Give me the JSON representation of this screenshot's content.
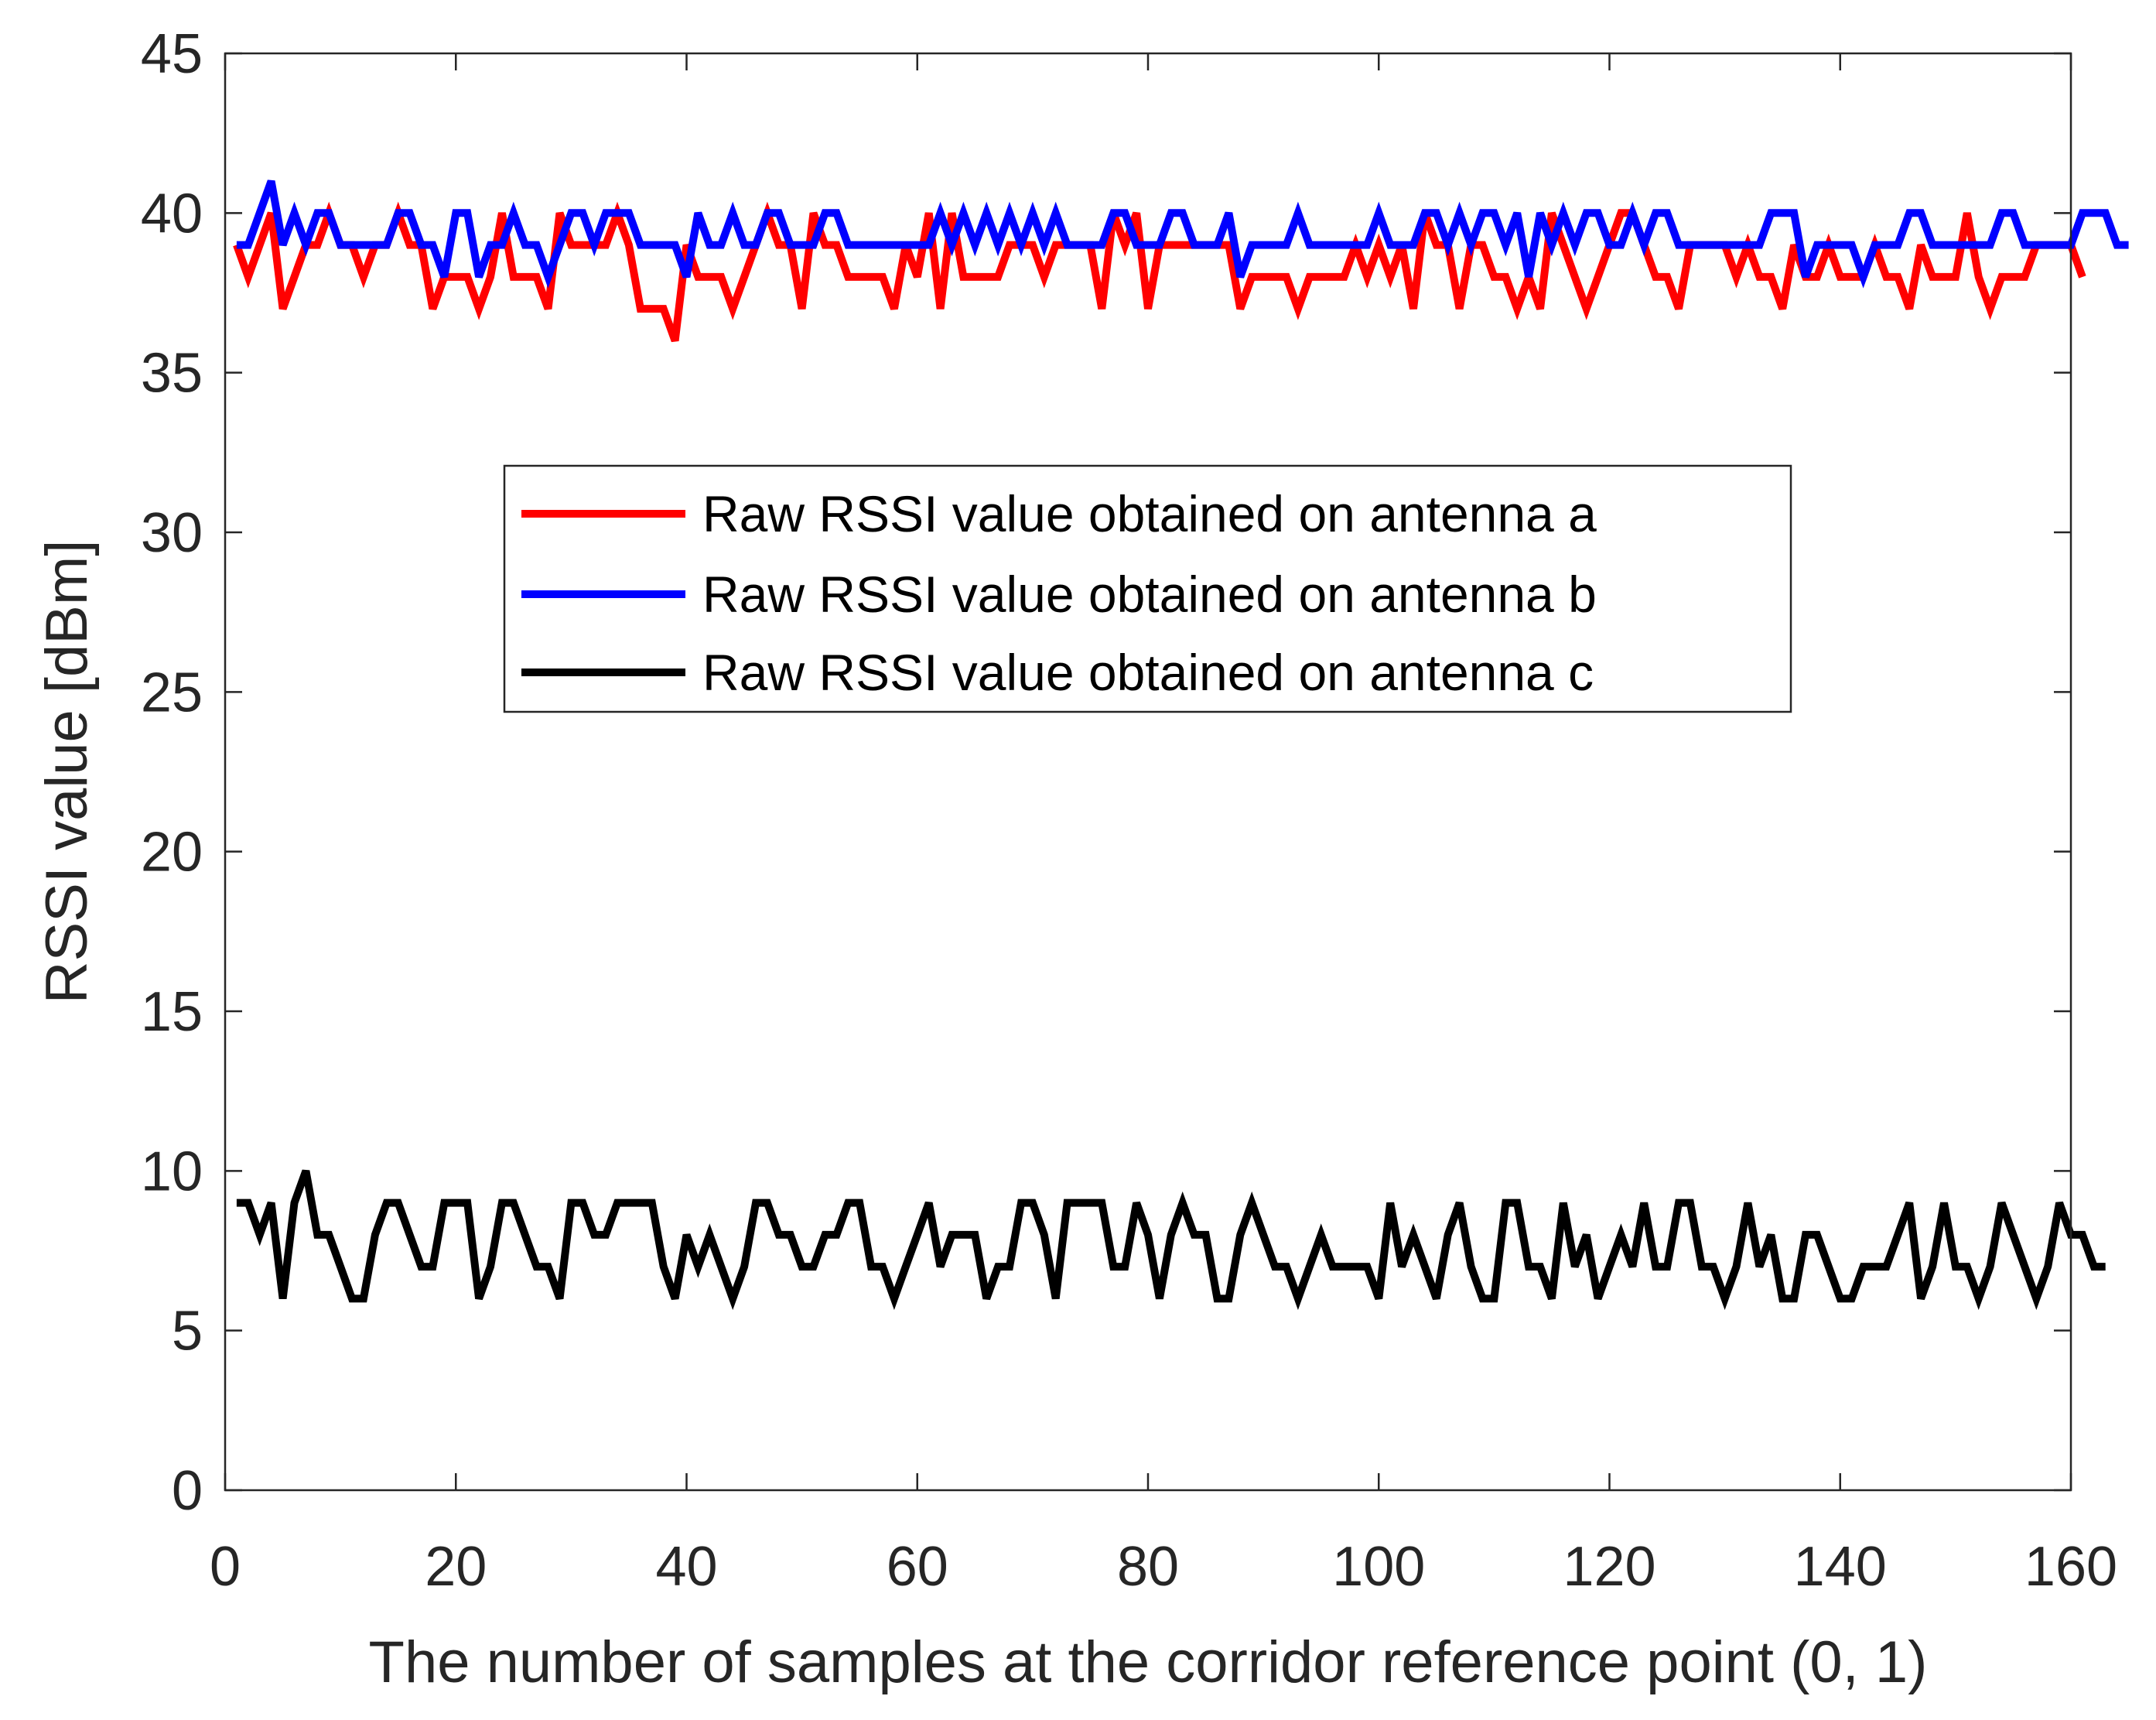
{
  "chart_data": {
    "type": "line",
    "title": "",
    "xlabel": "The number of samples at the corridor reference point (0, 1)",
    "ylabel": "RSSI value [dBm]",
    "xlim": [
      0,
      160
    ],
    "ylim": [
      0,
      45
    ],
    "xticks": [
      0,
      20,
      40,
      60,
      80,
      100,
      120,
      140,
      160
    ],
    "yticks": [
      0,
      5,
      10,
      15,
      20,
      25,
      30,
      35,
      40,
      45
    ],
    "grid": false,
    "legend_position": "center",
    "x_start": 1,
    "series": [
      {
        "name": "Raw RSSI value obtained on antenna a",
        "color": "#ff0000",
        "values": [
          39,
          38,
          39,
          40,
          37,
          38,
          39,
          39,
          40,
          39,
          39,
          38,
          39,
          39,
          40,
          39,
          39,
          37,
          38,
          38,
          38,
          37,
          38,
          40,
          38,
          38,
          38,
          37,
          40,
          39,
          39,
          39,
          39,
          40,
          39,
          37,
          37,
          37,
          36,
          39,
          38,
          38,
          38,
          37,
          38,
          39,
          40,
          39,
          39,
          37,
          40,
          39,
          39,
          38,
          38,
          38,
          38,
          37,
          39,
          38,
          40,
          37,
          40,
          38,
          38,
          38,
          38,
          39,
          39,
          39,
          38,
          39,
          39,
          39,
          39,
          37,
          40,
          39,
          40,
          37,
          39,
          39,
          39,
          39,
          39,
          39,
          39,
          37,
          38,
          38,
          38,
          38,
          37,
          38,
          38,
          38,
          38,
          39,
          38,
          39,
          38,
          39,
          37,
          40,
          39,
          39,
          37,
          39,
          39,
          38,
          38,
          37,
          38,
          37,
          40,
          39,
          38,
          37,
          38,
          39,
          40,
          40,
          39,
          38,
          38,
          37,
          39,
          39,
          39,
          39,
          38,
          39,
          38,
          38,
          37,
          39,
          38,
          38,
          39,
          38,
          38,
          38,
          39,
          38,
          38,
          37,
          39,
          38,
          38,
          38,
          40,
          38,
          37,
          38,
          38,
          38,
          39,
          39,
          39,
          39,
          38
        ]
      },
      {
        "name": "Raw RSSI value obtained on antenna b",
        "color": "#0000ff",
        "values": [
          39,
          39,
          40,
          41,
          39,
          40,
          39,
          40,
          40,
          39,
          39,
          39,
          39,
          39,
          40,
          40,
          39,
          39,
          38,
          40,
          40,
          38,
          39,
          39,
          40,
          39,
          39,
          38,
          39,
          40,
          40,
          39,
          40,
          40,
          40,
          39,
          39,
          39,
          39,
          38,
          40,
          39,
          39,
          40,
          39,
          39,
          40,
          40,
          39,
          39,
          39,
          40,
          40,
          39,
          39,
          39,
          39,
          39,
          39,
          39,
          39,
          40,
          39,
          40,
          39,
          40,
          39,
          40,
          39,
          40,
          39,
          40,
          39,
          39,
          39,
          39,
          40,
          40,
          39,
          39,
          39,
          40,
          40,
          39,
          39,
          39,
          40,
          38,
          39,
          39,
          39,
          39,
          40,
          39,
          39,
          39,
          39,
          39,
          39,
          40,
          39,
          39,
          39,
          40,
          40,
          39,
          40,
          39,
          40,
          40,
          39,
          40,
          38,
          40,
          39,
          40,
          39,
          40,
          40,
          39,
          39,
          40,
          39,
          40,
          40,
          39,
          39,
          39,
          39,
          39,
          39,
          39,
          39,
          40,
          40,
          40,
          38,
          39,
          39,
          39,
          39,
          38,
          39,
          39,
          39,
          40,
          40,
          39,
          39,
          39,
          39,
          39,
          39,
          40,
          40,
          39,
          39,
          39,
          39,
          39,
          40,
          40,
          40,
          39,
          39
        ]
      },
      {
        "name": "Raw RSSI value obtained on antenna c",
        "color": "#000000",
        "values": [
          9,
          9,
          8,
          9,
          6,
          9,
          10,
          8,
          8,
          7,
          6,
          6,
          8,
          9,
          9,
          8,
          7,
          7,
          9,
          9,
          9,
          6,
          7,
          9,
          9,
          8,
          7,
          7,
          6,
          9,
          9,
          8,
          8,
          9,
          9,
          9,
          9,
          7,
          6,
          8,
          7,
          8,
          7,
          6,
          7,
          9,
          9,
          8,
          8,
          7,
          7,
          8,
          8,
          9,
          9,
          7,
          7,
          6,
          7,
          8,
          9,
          7,
          8,
          8,
          8,
          6,
          7,
          7,
          9,
          9,
          8,
          6,
          9,
          9,
          9,
          9,
          7,
          7,
          9,
          8,
          6,
          8,
          9,
          8,
          8,
          6,
          6,
          8,
          9,
          8,
          7,
          7,
          6,
          7,
          8,
          7,
          7,
          7,
          7,
          6,
          9,
          7,
          8,
          7,
          6,
          8,
          9,
          7,
          6,
          6,
          9,
          9,
          7,
          7,
          6,
          9,
          7,
          8,
          6,
          7,
          8,
          7,
          9,
          7,
          7,
          9,
          9,
          7,
          7,
          6,
          7,
          9,
          7,
          8,
          6,
          6,
          8,
          8,
          7,
          6,
          6,
          7,
          7,
          7,
          8,
          9,
          6,
          7,
          9,
          7,
          7,
          6,
          7,
          9,
          8,
          7,
          6,
          7,
          9,
          8,
          8,
          7,
          7
        ]
      }
    ]
  }
}
